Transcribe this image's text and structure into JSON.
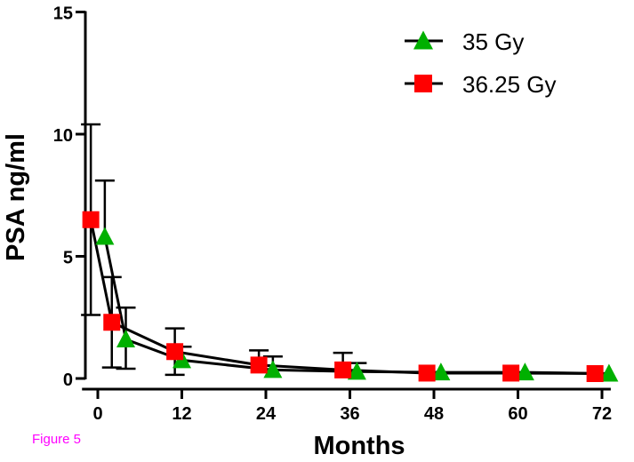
{
  "caption": {
    "text": "Figure 5",
    "color": "#ff00ff"
  },
  "chart_data": {
    "type": "line",
    "title": "",
    "xlabel": "Months",
    "ylabel": "PSA ng/ml",
    "xlim": [
      -2,
      73
    ],
    "ylim": [
      0,
      15
    ],
    "x_ticks": [
      0,
      12,
      24,
      36,
      48,
      60,
      72
    ],
    "y_ticks": [
      0,
      5,
      10,
      15
    ],
    "legend_position": "top-right",
    "grid": false,
    "series": [
      {
        "name": "35 Gy",
        "marker": "triangle",
        "color": "#00b000",
        "points": [
          {
            "x": 1,
            "y": 5.8,
            "err_up": 2.3
          },
          {
            "x": 4,
            "y": 1.6,
            "err_up": 1.3,
            "err_down": 1.2
          },
          {
            "x": 12,
            "y": 0.75,
            "err_up": 0.55
          },
          {
            "x": 25,
            "y": 0.35,
            "err_up": 0.55
          },
          {
            "x": 37,
            "y": 0.28,
            "err_up": 0.35
          },
          {
            "x": 49,
            "y": 0.25
          },
          {
            "x": 61,
            "y": 0.25
          },
          {
            "x": 73,
            "y": 0.2
          }
        ]
      },
      {
        "name": "36.25 Gy",
        "marker": "square",
        "color": "#ff0000",
        "points": [
          {
            "x": -1,
            "y": 6.5,
            "err_up": 3.9,
            "err_down": 3.9
          },
          {
            "x": 2,
            "y": 2.3,
            "err_up": 1.85,
            "err_down": 1.85
          },
          {
            "x": 11,
            "y": 1.1,
            "err_up": 0.95,
            "err_down": 0.95
          },
          {
            "x": 23,
            "y": 0.55,
            "err_up": 0.6
          },
          {
            "x": 35,
            "y": 0.35,
            "err_up": 0.7
          },
          {
            "x": 47,
            "y": 0.22
          },
          {
            "x": 59,
            "y": 0.22
          },
          {
            "x": 71,
            "y": 0.2
          }
        ]
      }
    ]
  }
}
